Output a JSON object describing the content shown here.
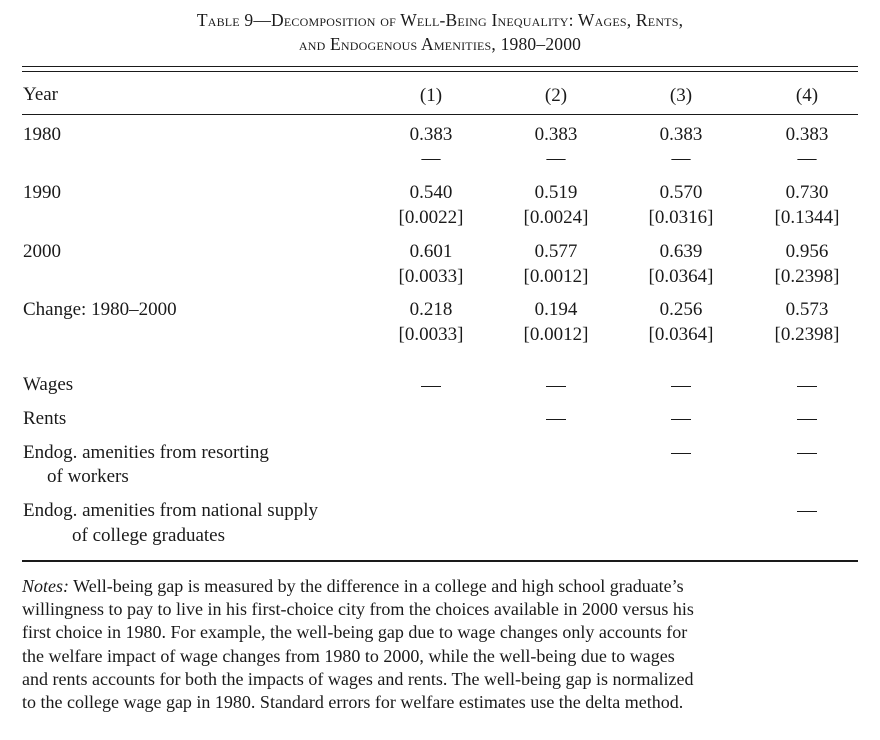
{
  "table": {
    "title_line1": "Table 9—Decomposition of Well-Being Inequality: Wages, Rents,",
    "title_line2": "and Endogenous Amenities, 1980–2000",
    "header": {
      "year": "Year",
      "cols": [
        "(1)",
        "(2)",
        "(3)",
        "(4)"
      ]
    },
    "rows": [
      {
        "label": "1980",
        "values": [
          "0.383",
          "0.383",
          "0.383",
          "0.383"
        ],
        "se": [
          "—",
          "—",
          "—",
          "—"
        ]
      },
      {
        "label": "1990",
        "values": [
          "0.540",
          "0.519",
          "0.570",
          "0.730"
        ],
        "se": [
          "[0.0022]",
          "[0.0024]",
          "[0.0316]",
          "[0.1344]"
        ]
      },
      {
        "label": "2000",
        "values": [
          "0.601",
          "0.577",
          "0.639",
          "0.956"
        ],
        "se": [
          "[0.0033]",
          "[0.0012]",
          "[0.0364]",
          "[0.2398]"
        ]
      },
      {
        "label": "Change: 1980–2000",
        "values": [
          "0.218",
          "0.194",
          "0.256",
          "0.573"
        ],
        "se": [
          "[0.0033]",
          "[0.0012]",
          "[0.0364]",
          "[0.2398]"
        ]
      }
    ],
    "components": [
      {
        "label": "Wages",
        "included": [
          true,
          true,
          true,
          true
        ]
      },
      {
        "label": "Rents",
        "included": [
          false,
          true,
          true,
          true
        ]
      },
      {
        "label_line1": "Endog. amenities from resorting",
        "label_line2": "of workers",
        "included": [
          false,
          false,
          true,
          true
        ]
      },
      {
        "label_line1": "Endog. amenities from national supply",
        "label_line2": "of college graduates",
        "included": [
          false,
          false,
          false,
          true
        ]
      }
    ],
    "notes": {
      "label": "Notes:",
      "lines": [
        " Well-being gap is measured by the difference in a college and high school graduate’s",
        "willingness to pay to live in his first-choice city from the choices available in 2000 versus his",
        "first choice in 1980. For example, the well-being gap due to wage changes only accounts for",
        "the welfare impact of wage changes from 1980 to 2000, while the well-being due to wages",
        "and rents accounts for both the impacts of wages and rents. The well-being gap is normalized",
        "to the college wage gap in 1980. Standard errors for welfare estimates use the delta method."
      ]
    }
  }
}
